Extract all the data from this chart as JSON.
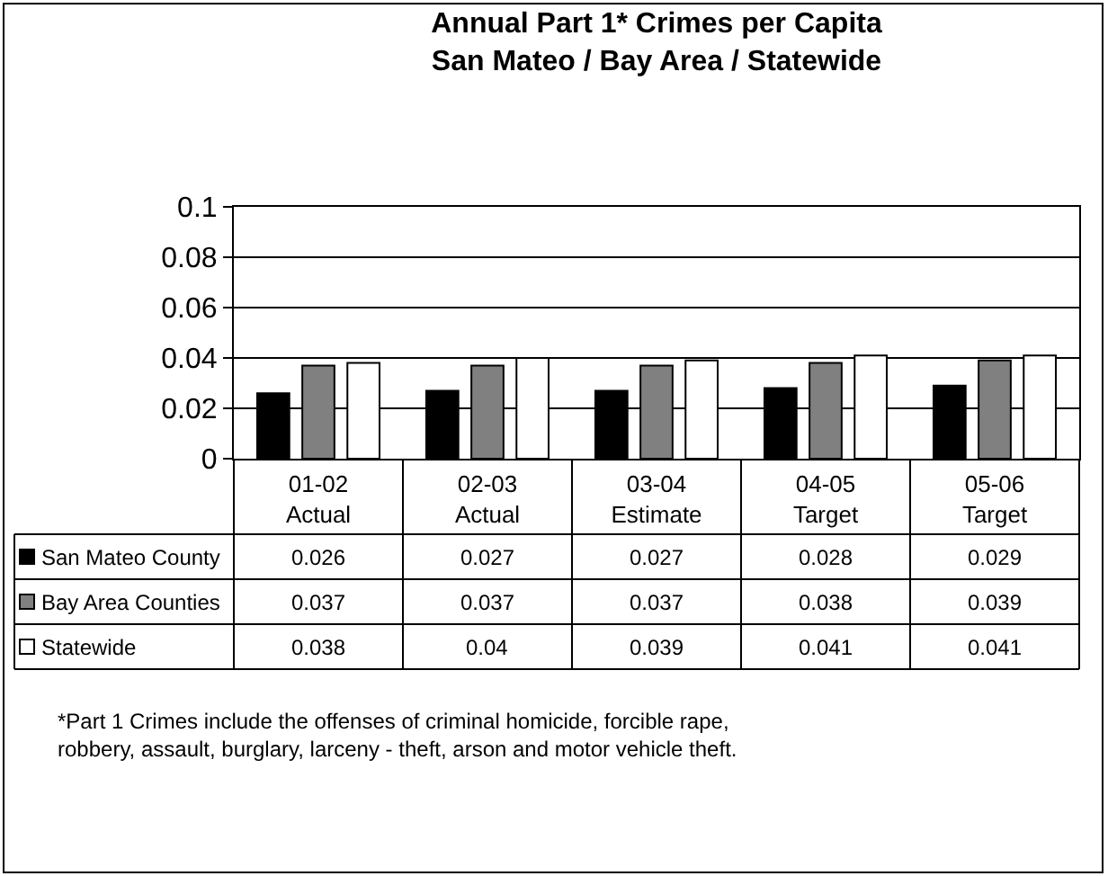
{
  "chart_data": {
    "type": "bar",
    "title": "Annual Part 1* Crimes per Capita",
    "subtitle": "San Mateo / Bay Area / Statewide",
    "categories": [
      "01-02\nActual",
      "02-03\nActual",
      "03-04\nEstimate",
      "04-05\nTarget",
      "05-06\nTarget"
    ],
    "series": [
      {
        "name": "San Mateo County",
        "color": "#000000",
        "values": [
          0.026,
          0.027,
          0.027,
          0.028,
          0.029
        ]
      },
      {
        "name": "Bay Area Counties",
        "color": "#808080",
        "values": [
          0.037,
          0.037,
          0.037,
          0.038,
          0.039
        ]
      },
      {
        "name": "Statewide",
        "color": "#ffffff",
        "values": [
          0.038,
          0.04,
          0.039,
          0.041,
          0.041
        ]
      }
    ],
    "ylim": [
      0,
      0.1
    ],
    "yticks": [
      0,
      0.02,
      0.04,
      0.06,
      0.08,
      0.1
    ],
    "grid": "y",
    "legend": "bottom left",
    "data_labels": true,
    "annotations": [
      "*Part 1 Crimes include the offenses of criminal homicide, forcible rape,\nrobbery, assault, burglary, larceny - theft, arson and motor vehicle theft."
    ]
  }
}
